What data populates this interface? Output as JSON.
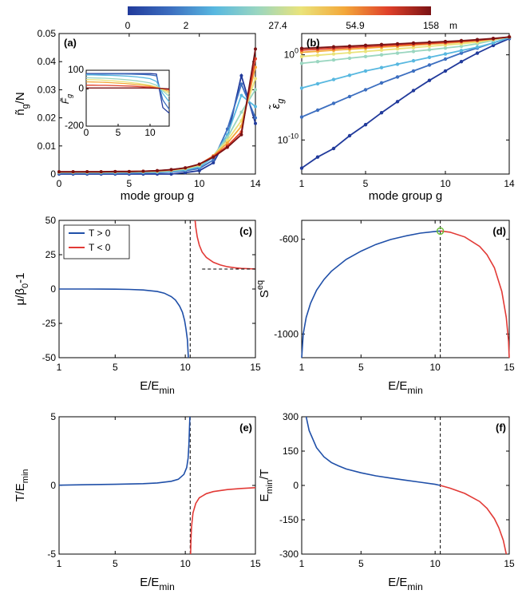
{
  "colorbar": {
    "labels": [
      "0",
      "2",
      "27.4",
      "54.9",
      "158"
    ],
    "unit": "m",
    "colors": [
      "#213a9b",
      "#3d6fc0",
      "#58b8e0",
      "#9ad6c0",
      "#eae37a",
      "#f3a83a",
      "#e0412a",
      "#7a1214"
    ]
  },
  "chart_data": [
    {
      "panel": "(a)",
      "type": "line",
      "xlabel": "mode group g",
      "ylabel_main": "ñ",
      "ylabel_sub": "g",
      "ylabel_tail": "/N",
      "xlim": [
        0,
        14
      ],
      "ylim": [
        0,
        0.05
      ],
      "xticks": [
        "0",
        "5",
        "10",
        "14"
      ],
      "yticks": [
        "0",
        "0.01",
        "0.02",
        "0.03",
        "0.04",
        "0.05"
      ],
      "x": [
        0,
        1,
        2,
        3,
        4,
        5,
        6,
        7,
        8,
        9,
        10,
        11,
        12,
        13,
        14
      ],
      "series": [
        {
          "color": "#213a9b",
          "values": [
            0,
            0,
            0,
            0,
            0,
            0,
            0,
            0,
            0,
            0.0005,
            0.0012,
            0.004,
            0.013,
            0.035,
            0.018
          ]
        },
        {
          "color": "#3d6fc0",
          "values": [
            0.0003,
            0.0003,
            0.0003,
            0.0003,
            0.0003,
            0.0003,
            0.0004,
            0.0005,
            0.0008,
            0.0012,
            0.002,
            0.005,
            0.016,
            0.032,
            0.02
          ]
        },
        {
          "color": "#58b8e0",
          "values": [
            0.0005,
            0.0005,
            0.0005,
            0.0005,
            0.0005,
            0.0006,
            0.0006,
            0.0007,
            0.001,
            0.0015,
            0.0025,
            0.006,
            0.014,
            0.028,
            0.024
          ]
        },
        {
          "color": "#9ad6c0",
          "values": [
            0.0006,
            0.0006,
            0.0006,
            0.0006,
            0.0007,
            0.0007,
            0.0008,
            0.0009,
            0.0012,
            0.0018,
            0.003,
            0.0065,
            0.013,
            0.022,
            0.03
          ]
        },
        {
          "color": "#eae37a",
          "values": [
            0.0007,
            0.0007,
            0.0007,
            0.0007,
            0.0008,
            0.0008,
            0.0009,
            0.001,
            0.0014,
            0.002,
            0.0032,
            0.0065,
            0.012,
            0.019,
            0.034
          ]
        },
        {
          "color": "#f3a83a",
          "values": [
            0.0007,
            0.0007,
            0.0008,
            0.0008,
            0.0008,
            0.0009,
            0.001,
            0.0011,
            0.0015,
            0.0021,
            0.0034,
            0.0065,
            0.011,
            0.017,
            0.038
          ]
        },
        {
          "color": "#e0412a",
          "values": [
            0.0008,
            0.0008,
            0.0008,
            0.0008,
            0.0009,
            0.0009,
            0.001,
            0.0012,
            0.0015,
            0.0022,
            0.0035,
            0.0063,
            0.01,
            0.015,
            0.041
          ]
        },
        {
          "color": "#7a1214",
          "values": [
            0.0008,
            0.0008,
            0.0008,
            0.0008,
            0.0009,
            0.0009,
            0.001,
            0.0012,
            0.0016,
            0.0022,
            0.0035,
            0.006,
            0.0095,
            0.014,
            0.0445
          ]
        }
      ],
      "inset": {
        "ylabel": "F̃",
        "ylabel_sub": "g",
        "xlim": [
          0,
          13
        ],
        "ylim": [
          -200,
          100
        ],
        "xticks": [
          "0",
          "5",
          "10"
        ],
        "yticks": [
          "-200",
          "0",
          "100"
        ],
        "x": [
          0,
          1,
          2,
          3,
          4,
          5,
          6,
          7,
          8,
          9,
          10,
          11,
          12,
          13
        ],
        "series": [
          {
            "color": "#213a9b",
            "values": [
              82,
              82,
              82,
              82,
              82,
              82,
              82,
              82,
              82,
              82,
              82,
              80,
              -100,
              -130
            ]
          },
          {
            "color": "#3d6fc0",
            "values": [
              80,
              80,
              80,
              80,
              80,
              80,
              80,
              79,
              78,
              77,
              75,
              70,
              -60,
              -110
            ]
          },
          {
            "color": "#58b8e0",
            "values": [
              75,
              75,
              74,
              73,
              72,
              71,
              69,
              67,
              64,
              60,
              55,
              40,
              -25,
              -70
            ]
          },
          {
            "color": "#9ad6c0",
            "values": [
              60,
              59,
              58,
              57,
              55,
              53,
              50,
              47,
              43,
              38,
              32,
              20,
              -10,
              -40
            ]
          },
          {
            "color": "#eae37a",
            "values": [
              50,
              49,
              48,
              46,
              44,
              41,
              38,
              34,
              30,
              25,
              20,
              10,
              -5,
              -25
            ]
          },
          {
            "color": "#f3a83a",
            "values": [
              38,
              37,
              36,
              35,
              33,
              31,
              29,
              26,
              23,
              19,
              15,
              8,
              0,
              -15
            ]
          },
          {
            "color": "#e0412a",
            "values": [
              20,
              20,
              19,
              19,
              18,
              17,
              16,
              15,
              13,
              11,
              9,
              5,
              2,
              -5
            ]
          },
          {
            "color": "#7a1214",
            "values": [
              5,
              5,
              5,
              5,
              5,
              5,
              5,
              5,
              5,
              5,
              4,
              3,
              2,
              0
            ]
          }
        ]
      }
    },
    {
      "panel": "(b)",
      "type": "line",
      "yscale": "log",
      "xlabel": "mode group g",
      "ylabel_main": "ε̃",
      "ylabel_sub": "g",
      "xlim": [
        1,
        14
      ],
      "ylim_log10": [
        -14,
        2.5
      ],
      "xticks": [
        "1",
        "5",
        "10",
        "14"
      ],
      "yticks": [
        {
          "base": "10",
          "exp": "0",
          "at": 0
        },
        {
          "base": "10",
          "exp": "-10",
          "at": -10
        }
      ],
      "x": [
        1,
        2,
        3,
        4,
        5,
        6,
        7,
        8,
        9,
        10,
        11,
        12,
        13,
        14
      ],
      "series_log10": [
        {
          "color": "#213a9b",
          "values": [
            -13.3,
            -12.0,
            -11.0,
            -9.5,
            -8.2,
            -6.8,
            -5.5,
            -4.2,
            -3.0,
            -1.9,
            -0.8,
            0.2,
            1.1,
            1.9
          ]
        },
        {
          "color": "#3d6fc0",
          "values": [
            -7.3,
            -6.5,
            -5.7,
            -4.9,
            -4.1,
            -3.3,
            -2.6,
            -1.9,
            -1.2,
            -0.5,
            0.2,
            0.8,
            1.4,
            2.0
          ]
        },
        {
          "color": "#58b8e0",
          "values": [
            -3.9,
            -3.4,
            -2.9,
            -2.4,
            -1.9,
            -1.5,
            -1.1,
            -0.7,
            -0.3,
            0.1,
            0.5,
            0.9,
            1.4,
            2.0
          ]
        },
        {
          "color": "#9ad6c0",
          "values": [
            -1.0,
            -0.8,
            -0.6,
            -0.4,
            -0.2,
            0.0,
            0.2,
            0.4,
            0.6,
            0.8,
            1.0,
            1.3,
            1.7,
            2.1
          ]
        },
        {
          "color": "#eae37a",
          "values": [
            -0.2,
            -0.05,
            0.1,
            0.25,
            0.4,
            0.55,
            0.7,
            0.85,
            1.0,
            1.15,
            1.3,
            1.5,
            1.8,
            2.1
          ]
        },
        {
          "color": "#f3a83a",
          "values": [
            0.3,
            0.42,
            0.54,
            0.66,
            0.78,
            0.9,
            1.0,
            1.12,
            1.24,
            1.36,
            1.5,
            1.65,
            1.85,
            2.1
          ]
        },
        {
          "color": "#e0412a",
          "values": [
            0.55,
            0.65,
            0.75,
            0.85,
            0.95,
            1.05,
            1.15,
            1.25,
            1.35,
            1.45,
            1.57,
            1.7,
            1.88,
            2.1
          ]
        },
        {
          "color": "#7a1214",
          "values": [
            0.75,
            0.84,
            0.93,
            1.02,
            1.11,
            1.2,
            1.29,
            1.38,
            1.47,
            1.56,
            1.66,
            1.78,
            1.92,
            2.1
          ]
        }
      ]
    },
    {
      "panel": "(c)",
      "type": "line",
      "xlabel_main": "E/E",
      "xlabel_sub": "min",
      "ylabel_main": "μ/β",
      "ylabel_sub": "0",
      "ylabel_tail": "-1",
      "xlim": [
        1,
        15
      ],
      "ylim": [
        -50,
        50
      ],
      "xticks": [
        {
          "label": "1",
          "v": 1
        },
        {
          "label": "5",
          "v": 5
        },
        {
          "label": "10",
          "v": 10
        },
        {
          "label": "15",
          "v": 15
        }
      ],
      "yticks": [
        {
          "label": "-50",
          "v": -50
        },
        {
          "label": "-25",
          "v": -25
        },
        {
          "label": "0",
          "v": 0
        },
        {
          "label": "25",
          "v": 25
        },
        {
          "label": "50",
          "v": 50
        }
      ],
      "critical_x": 10.35,
      "asymptote_y": 14.5,
      "legend": [
        {
          "label": "T > 0",
          "color": "#1f4fa8"
        },
        {
          "label": "T < 0",
          "color": "#e23a36"
        }
      ],
      "series": [
        {
          "color": "#1f4fa8",
          "x": [
            1,
            3,
            5,
            6,
            7,
            8,
            8.5,
            9,
            9.3,
            9.6,
            9.8,
            9.95,
            10.05,
            10.15,
            10.22
          ],
          "y": [
            0,
            0,
            -0.1,
            -0.3,
            -0.7,
            -1.8,
            -3,
            -5.5,
            -8,
            -12.5,
            -17,
            -23,
            -29,
            -37,
            -50
          ]
        },
        {
          "color": "#e23a36",
          "x": [
            10.7,
            10.75,
            10.85,
            11,
            11.2,
            11.5,
            12,
            12.5,
            13,
            13.5,
            14,
            14.5,
            15
          ],
          "y": [
            50,
            45,
            38,
            32,
            27,
            23,
            19.5,
            17.5,
            16.2,
            15.5,
            15,
            14.8,
            14.6
          ]
        }
      ]
    },
    {
      "panel": "(d)",
      "type": "line",
      "xlabel_main": "E/E",
      "xlabel_sub": "min",
      "ylabel_main": "S",
      "ylabel_sup": "eq",
      "xlim": [
        1,
        15
      ],
      "ylim": [
        -1100,
        -520
      ],
      "xticks": [
        {
          "label": "1",
          "v": 1
        },
        {
          "label": "5",
          "v": 5
        },
        {
          "label": "10",
          "v": 10
        },
        {
          "label": "15",
          "v": 15
        }
      ],
      "yticks": [
        {
          "label": "-600",
          "v": -600
        },
        {
          "label": "-1000",
          "v": -1000
        }
      ],
      "critical_x": 10.35,
      "max_point": [
        10.35,
        -565
      ],
      "series": [
        {
          "color": "#1f4fa8",
          "x": [
            1,
            1.1,
            1.3,
            1.6,
            2,
            2.5,
            3,
            4,
            5,
            6,
            7,
            8,
            9,
            10,
            10.35
          ],
          "y": [
            -1100,
            -1000,
            -930,
            -870,
            -815,
            -770,
            -735,
            -685,
            -650,
            -622,
            -601,
            -586,
            -574,
            -567,
            -565
          ]
        },
        {
          "color": "#e23a36",
          "x": [
            10.35,
            11,
            12,
            13,
            13.5,
            14,
            14.5,
            14.8,
            14.95,
            15
          ],
          "y": [
            -565,
            -570,
            -590,
            -630,
            -665,
            -720,
            -820,
            -930,
            -1030,
            -1100
          ]
        }
      ]
    },
    {
      "panel": "(e)",
      "type": "line",
      "xlabel_main": "E/E",
      "xlabel_sub": "min",
      "ylabel_main": "T/E",
      "ylabel_sub": "min",
      "xlim": [
        1,
        15
      ],
      "ylim": [
        -5,
        5
      ],
      "xticks": [
        {
          "label": "1",
          "v": 1
        },
        {
          "label": "5",
          "v": 5
        },
        {
          "label": "10",
          "v": 10
        },
        {
          "label": "15",
          "v": 15
        }
      ],
      "yticks": [
        {
          "label": "-5",
          "v": -5
        },
        {
          "label": "0",
          "v": 0
        },
        {
          "label": "5",
          "v": 5
        }
      ],
      "critical_x": 10.35,
      "series": [
        {
          "color": "#1f4fa8",
          "x": [
            1,
            3,
            5,
            7,
            8,
            9,
            9.5,
            9.9,
            10.1,
            10.2,
            10.26,
            10.3,
            10.33
          ],
          "y": [
            0.02,
            0.05,
            0.08,
            0.13,
            0.18,
            0.3,
            0.45,
            0.8,
            1.3,
            2,
            3,
            4.2,
            5
          ]
        },
        {
          "color": "#e23a36",
          "x": [
            10.38,
            10.4,
            10.45,
            10.55,
            10.75,
            11,
            11.5,
            12,
            13,
            14,
            15
          ],
          "y": [
            -5,
            -4,
            -3,
            -2,
            -1.3,
            -0.9,
            -0.6,
            -0.45,
            -0.3,
            -0.22,
            -0.16
          ]
        }
      ]
    },
    {
      "panel": "(f)",
      "type": "line",
      "xlabel_main": "E/E",
      "xlabel_sub": "min",
      "ylabel_main": "E",
      "ylabel_sub": "min",
      "ylabel_tail": "/T",
      "xlim": [
        1,
        15
      ],
      "ylim": [
        -300,
        300
      ],
      "xticks": [
        {
          "label": "1",
          "v": 1
        },
        {
          "label": "5",
          "v": 5
        },
        {
          "label": "10",
          "v": 10
        },
        {
          "label": "15",
          "v": 15
        }
      ],
      "yticks": [
        {
          "label": "-300",
          "v": -300
        },
        {
          "label": "-150",
          "v": -150
        },
        {
          "label": "0",
          "v": 0
        },
        {
          "label": "150",
          "v": 150
        },
        {
          "label": "300",
          "v": 300
        }
      ],
      "critical_x": 10.35,
      "series": [
        {
          "color": "#1f4fa8",
          "x": [
            1.3,
            1.5,
            2,
            2.5,
            3,
            3.5,
            4,
            5,
            6,
            7,
            8,
            9,
            10,
            10.35
          ],
          "y": [
            300,
            240,
            165,
            125,
            100,
            85,
            72,
            55,
            42,
            32,
            23,
            14,
            5,
            0
          ]
        },
        {
          "color": "#e23a36",
          "x": [
            10.35,
            11,
            12,
            13,
            13.5,
            14,
            14.3,
            14.6,
            14.8
          ],
          "y": [
            0,
            -12,
            -35,
            -70,
            -100,
            -145,
            -185,
            -240,
            -300
          ]
        }
      ]
    }
  ]
}
